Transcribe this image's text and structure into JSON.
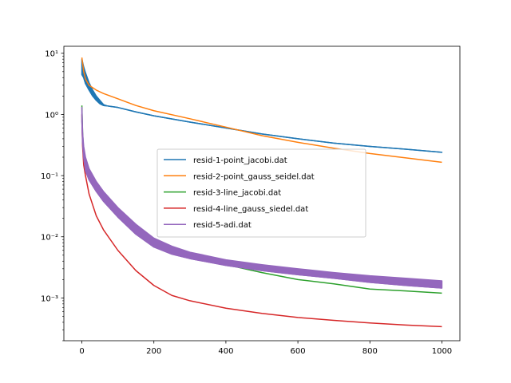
{
  "chart_data": {
    "type": "line",
    "title": "",
    "xlabel": "",
    "ylabel": "",
    "xlim": [
      -50,
      1050
    ],
    "ylim": [
      0.0002,
      13
    ],
    "yscale": "log",
    "x_ticks": [
      0,
      200,
      400,
      600,
      800,
      1000
    ],
    "x_tick_labels": [
      "0",
      "200",
      "400",
      "600",
      "800",
      "1000"
    ],
    "y_ticks": [
      0.001,
      0.01,
      0.1,
      1,
      10
    ],
    "y_tick_labels": [
      "10⁻³",
      "10⁻²",
      "10⁻¹",
      "10⁰",
      "10¹"
    ],
    "grid": false,
    "legend_position": "center",
    "series": [
      {
        "name": "resid-1-point_jacobi.dat",
        "color": "#1f77b4",
        "x": [
          0,
          5,
          10,
          20,
          30,
          40,
          50,
          60,
          70,
          80,
          100,
          150,
          200,
          300,
          400,
          500,
          600,
          700,
          800,
          900,
          1000
        ],
        "y": [
          4.5,
          4.0,
          3.2,
          2.5,
          2.0,
          1.7,
          1.5,
          1.4,
          1.38,
          1.35,
          1.3,
          1.1,
          0.95,
          0.75,
          0.6,
          0.48,
          0.4,
          0.34,
          0.3,
          0.27,
          0.24
        ],
        "y_upper": [
          8.0,
          6.0,
          4.8,
          3.3,
          2.5,
          2.0,
          1.7,
          1.45,
          1.38,
          1.35,
          1.3,
          1.1,
          0.95,
          0.75,
          0.6,
          0.48,
          0.4,
          0.34,
          0.3,
          0.27,
          0.24
        ]
      },
      {
        "name": "resid-2-point_gauss_seidel.dat",
        "color": "#ff7f0e",
        "x": [
          0,
          5,
          10,
          20,
          40,
          60,
          100,
          150,
          200,
          300,
          400,
          500,
          600,
          700,
          800,
          900,
          1000
        ],
        "y": [
          8.5,
          5.0,
          3.8,
          3.0,
          2.5,
          2.2,
          1.8,
          1.4,
          1.15,
          0.85,
          0.62,
          0.45,
          0.35,
          0.28,
          0.23,
          0.195,
          0.165
        ]
      },
      {
        "name": "resid-3-line_jacobi.dat",
        "color": "#2ca02c",
        "x": [
          0,
          2,
          5,
          10,
          20,
          40,
          60,
          100,
          150,
          200,
          250,
          300,
          400,
          500,
          600,
          700,
          800,
          900,
          1000
        ],
        "y": [
          1.4,
          0.5,
          0.25,
          0.15,
          0.1,
          0.065,
          0.045,
          0.025,
          0.013,
          0.008,
          0.006,
          0.0048,
          0.0035,
          0.0026,
          0.002,
          0.0017,
          0.0014,
          0.0013,
          0.0012
        ]
      },
      {
        "name": "resid-4-line_gauss_siedel.dat",
        "color": "#d62728",
        "x": [
          0,
          1,
          2,
          5,
          10,
          20,
          40,
          60,
          100,
          150,
          200,
          250,
          300,
          400,
          500,
          600,
          700,
          800,
          900,
          1000
        ],
        "y": [
          1.0,
          0.5,
          0.3,
          0.15,
          0.1,
          0.05,
          0.022,
          0.013,
          0.006,
          0.0028,
          0.0016,
          0.0011,
          0.0009,
          0.00068,
          0.00056,
          0.00048,
          0.00043,
          0.00039,
          0.00036,
          0.00034
        ]
      },
      {
        "name": "resid-5-adi.dat",
        "color": "#9467bd",
        "x": [
          0,
          2,
          5,
          10,
          20,
          40,
          60,
          100,
          150,
          200,
          250,
          300,
          400,
          500,
          600,
          700,
          800,
          900,
          1000
        ],
        "y": [
          0.8,
          0.35,
          0.2,
          0.12,
          0.085,
          0.055,
          0.038,
          0.021,
          0.011,
          0.0068,
          0.0052,
          0.0044,
          0.0034,
          0.0028,
          0.0024,
          0.0021,
          0.0018,
          0.0016,
          0.00145
        ],
        "y_upper": [
          1.3,
          0.5,
          0.3,
          0.2,
          0.13,
          0.08,
          0.055,
          0.03,
          0.016,
          0.0095,
          0.007,
          0.0056,
          0.0042,
          0.0035,
          0.003,
          0.0026,
          0.0023,
          0.0021,
          0.0019
        ]
      }
    ]
  }
}
